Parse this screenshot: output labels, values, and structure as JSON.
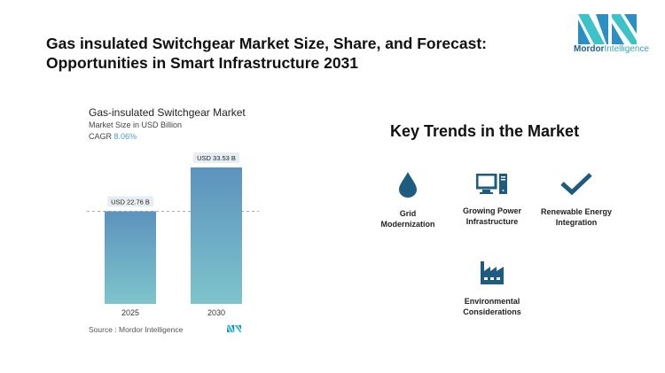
{
  "header": {
    "title_line1": "Gas insulated Switchgear Market Size, Share, and Forecast:",
    "title_line2": "Opportunities in Smart Infrastructure 2031"
  },
  "logo": {
    "brand1": "Mordor",
    "brand2": "Intelligence"
  },
  "chart_data": {
    "type": "bar",
    "title": "Gas-insulated Switchgear Market",
    "subtitle": "Market Size in USD Billion",
    "cagr_label": "CAGR",
    "cagr_value": "8.06%",
    "categories": [
      "2025",
      "2030"
    ],
    "values": [
      22.76,
      33.53
    ],
    "data_labels": [
      "USD 22.76 B",
      "USD 33.53 B"
    ],
    "ylim": [
      0,
      33.53
    ],
    "colors": {
      "top": "#5b93bd",
      "bottom": "#7ec4cc"
    },
    "source": "Source :  Mordor Intelligence"
  },
  "trends": {
    "title": "Key Trends in the Market",
    "icon_color": "#1d5b7f",
    "items": [
      {
        "line1": "Grid",
        "line2": "Modernization",
        "icon": "water-drop-icon"
      },
      {
        "line1": "Growing Power",
        "line2": "Infrastructure",
        "icon": "computer-icon"
      },
      {
        "line1": "Renewable Energy",
        "line2": "Integration",
        "icon": "checkmark-icon"
      },
      {
        "line1": "Environmental",
        "line2": "Considerations",
        "icon": "factory-icon"
      }
    ]
  }
}
